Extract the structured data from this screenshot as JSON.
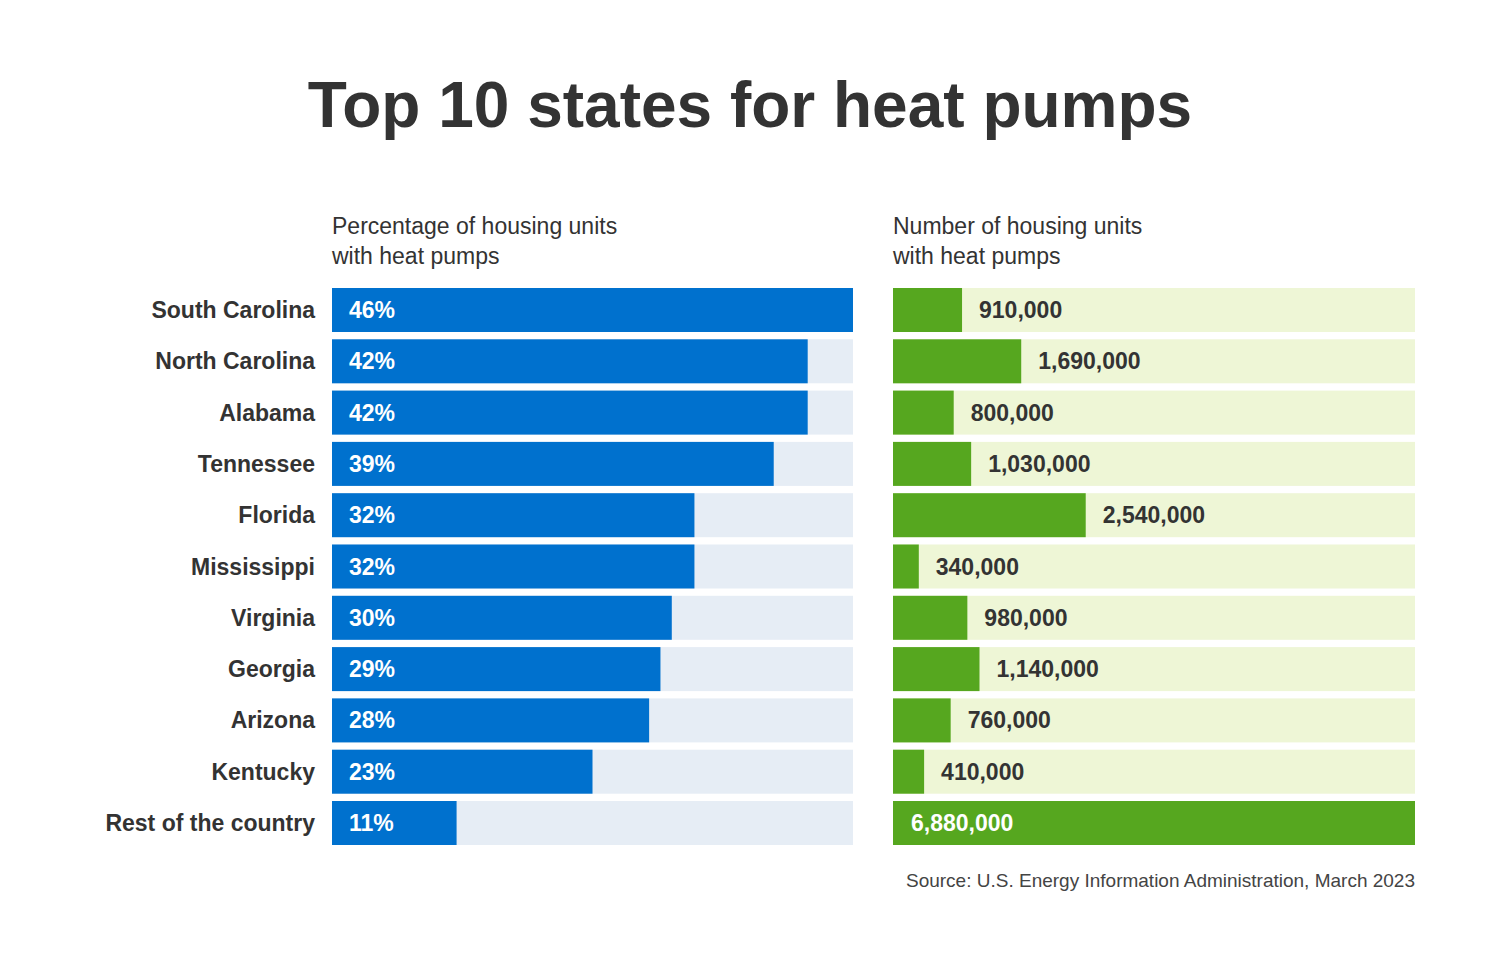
{
  "chart_data": {
    "type": "bar",
    "orientation": "horizontal",
    "title": "Top 10 states for heat pumps",
    "source": "Source: U.S. Energy Information Administration, March 2023",
    "data_labels": true,
    "grid": false,
    "categories": [
      "South Carolina",
      "North Carolina",
      "Alabama",
      "Tennessee",
      "Florida",
      "Mississippi",
      "Virginia",
      "Georgia",
      "Arizona",
      "Kentucky",
      "Rest of the country"
    ],
    "ylim": [
      0,
      46
    ],
    "y2lim": [
      0,
      6880000
    ],
    "series": [
      {
        "name": "Percentage of housing units\nwith heat pumps",
        "color": "#0071ce",
        "values": [
          46,
          42,
          42,
          39,
          32,
          32,
          30,
          29,
          28,
          23,
          11
        ],
        "value_labels": [
          "46%",
          "42%",
          "42%",
          "39%",
          "32%",
          "32%",
          "30%",
          "29%",
          "28%",
          "23%",
          "11%"
        ]
      },
      {
        "name": "Number of housing units\nwith heat pumps",
        "color": "#56a71f",
        "axis": "y2",
        "values": [
          910000,
          1690000,
          800000,
          1030000,
          2540000,
          340000,
          980000,
          1140000,
          760000,
          410000,
          6880000
        ],
        "value_labels": [
          "910,000",
          "1,690,000",
          "800,000",
          "1,030,000",
          "2,540,000",
          "340,000",
          "980,000",
          "1,140,000",
          "760,000",
          "410,000",
          "6,880,000"
        ]
      }
    ]
  }
}
